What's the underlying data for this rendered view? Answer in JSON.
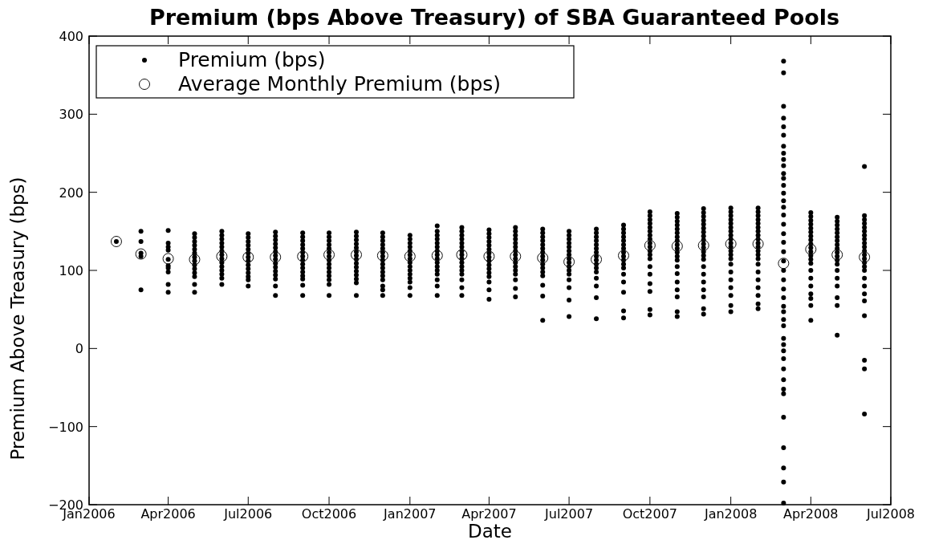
{
  "chart_data": {
    "type": "scatter",
    "title": "Premium (bps Above Treasury) of SBA Guaranteed Pools",
    "xlabel": "Date",
    "ylabel": "Premium Above Treasury (bps)",
    "xlim": [
      "2006-01",
      "2008-07"
    ],
    "xticks": [
      {
        "value": "2006-01",
        "label": "Jan2006"
      },
      {
        "value": "2006-04",
        "label": "Apr2006"
      },
      {
        "value": "2006-07",
        "label": "Jul2006"
      },
      {
        "value": "2006-10",
        "label": "Oct2006"
      },
      {
        "value": "2007-01",
        "label": "Jan2007"
      },
      {
        "value": "2007-04",
        "label": "Apr2007"
      },
      {
        "value": "2007-07",
        "label": "Jul2007"
      },
      {
        "value": "2007-10",
        "label": "Oct2007"
      },
      {
        "value": "2008-01",
        "label": "Jan2008"
      },
      {
        "value": "2008-04",
        "label": "Apr2008"
      },
      {
        "value": "2008-07",
        "label": "Jul2008"
      }
    ],
    "ylim": [
      -200,
      400
    ],
    "yticks": [
      {
        "value": -200,
        "label": "−200"
      },
      {
        "value": -100,
        "label": "−100"
      },
      0,
      100,
      200,
      300,
      400
    ],
    "grid": false,
    "legend": "top left",
    "series": [
      {
        "name": "Premium (bps)",
        "color": "#000000",
        "marker": "circle",
        "x": [
          "2006-02",
          "2006-03",
          "2006-03",
          "2006-03",
          "2006-03",
          "2006-03",
          "2006-04",
          "2006-04",
          "2006-04",
          "2006-04",
          "2006-04",
          "2006-04",
          "2006-04",
          "2006-04",
          "2006-04",
          "2006-04",
          "2006-05",
          "2006-05",
          "2006-05",
          "2006-05",
          "2006-05",
          "2006-05",
          "2006-05",
          "2006-05",
          "2006-05",
          "2006-05",
          "2006-05",
          "2006-05",
          "2006-05",
          "2006-05",
          "2006-06",
          "2006-06",
          "2006-06",
          "2006-06",
          "2006-06",
          "2006-06",
          "2006-06",
          "2006-06",
          "2006-06",
          "2006-06",
          "2006-06",
          "2006-06",
          "2006-06",
          "2006-06",
          "2006-07",
          "2006-07",
          "2006-07",
          "2006-07",
          "2006-07",
          "2006-07",
          "2006-07",
          "2006-07",
          "2006-07",
          "2006-07",
          "2006-07",
          "2006-07",
          "2006-07",
          "2006-07",
          "2006-08",
          "2006-08",
          "2006-08",
          "2006-08",
          "2006-08",
          "2006-08",
          "2006-08",
          "2006-08",
          "2006-08",
          "2006-08",
          "2006-08",
          "2006-08",
          "2006-08",
          "2006-08",
          "2006-08",
          "2006-09",
          "2006-09",
          "2006-09",
          "2006-09",
          "2006-09",
          "2006-09",
          "2006-09",
          "2006-09",
          "2006-09",
          "2006-09",
          "2006-09",
          "2006-09",
          "2006-09",
          "2006-09",
          "2006-09",
          "2006-10",
          "2006-10",
          "2006-10",
          "2006-10",
          "2006-10",
          "2006-10",
          "2006-10",
          "2006-10",
          "2006-10",
          "2006-10",
          "2006-10",
          "2006-10",
          "2006-10",
          "2006-10",
          "2006-10",
          "2006-11",
          "2006-11",
          "2006-11",
          "2006-11",
          "2006-11",
          "2006-11",
          "2006-11",
          "2006-11",
          "2006-11",
          "2006-11",
          "2006-11",
          "2006-11",
          "2006-11",
          "2006-11",
          "2006-11",
          "2006-12",
          "2006-12",
          "2006-12",
          "2006-12",
          "2006-12",
          "2006-12",
          "2006-12",
          "2006-12",
          "2006-12",
          "2006-12",
          "2006-12",
          "2006-12",
          "2006-12",
          "2006-12",
          "2006-12",
          "2006-12",
          "2007-01",
          "2007-01",
          "2007-01",
          "2007-01",
          "2007-01",
          "2007-01",
          "2007-01",
          "2007-01",
          "2007-01",
          "2007-01",
          "2007-01",
          "2007-01",
          "2007-01",
          "2007-01",
          "2007-01",
          "2007-02",
          "2007-02",
          "2007-02",
          "2007-02",
          "2007-02",
          "2007-02",
          "2007-02",
          "2007-02",
          "2007-02",
          "2007-02",
          "2007-02",
          "2007-02",
          "2007-02",
          "2007-02",
          "2007-02",
          "2007-02",
          "2007-03",
          "2007-03",
          "2007-03",
          "2007-03",
          "2007-03",
          "2007-03",
          "2007-03",
          "2007-03",
          "2007-03",
          "2007-03",
          "2007-03",
          "2007-03",
          "2007-03",
          "2007-03",
          "2007-03",
          "2007-03",
          "2007-04",
          "2007-04",
          "2007-04",
          "2007-04",
          "2007-04",
          "2007-04",
          "2007-04",
          "2007-04",
          "2007-04",
          "2007-04",
          "2007-04",
          "2007-04",
          "2007-04",
          "2007-04",
          "2007-04",
          "2007-04",
          "2007-05",
          "2007-05",
          "2007-05",
          "2007-05",
          "2007-05",
          "2007-05",
          "2007-05",
          "2007-05",
          "2007-05",
          "2007-05",
          "2007-05",
          "2007-05",
          "2007-05",
          "2007-05",
          "2007-05",
          "2007-05",
          "2007-06",
          "2007-06",
          "2007-06",
          "2007-06",
          "2007-06",
          "2007-06",
          "2007-06",
          "2007-06",
          "2007-06",
          "2007-06",
          "2007-06",
          "2007-06",
          "2007-06",
          "2007-06",
          "2007-06",
          "2007-06",
          "2007-07",
          "2007-07",
          "2007-07",
          "2007-07",
          "2007-07",
          "2007-07",
          "2007-07",
          "2007-07",
          "2007-07",
          "2007-07",
          "2007-07",
          "2007-07",
          "2007-07",
          "2007-07",
          "2007-07",
          "2007-07",
          "2007-08",
          "2007-08",
          "2007-08",
          "2007-08",
          "2007-08",
          "2007-08",
          "2007-08",
          "2007-08",
          "2007-08",
          "2007-08",
          "2007-08",
          "2007-08",
          "2007-08",
          "2007-08",
          "2007-08",
          "2007-08",
          "2007-09",
          "2007-09",
          "2007-09",
          "2007-09",
          "2007-09",
          "2007-09",
          "2007-09",
          "2007-09",
          "2007-09",
          "2007-09",
          "2007-09",
          "2007-09",
          "2007-09",
          "2007-09",
          "2007-09",
          "2007-09",
          "2007-09",
          "2007-10",
          "2007-10",
          "2007-10",
          "2007-10",
          "2007-10",
          "2007-10",
          "2007-10",
          "2007-10",
          "2007-10",
          "2007-10",
          "2007-10",
          "2007-10",
          "2007-10",
          "2007-10",
          "2007-10",
          "2007-10",
          "2007-10",
          "2007-10",
          "2007-10",
          "2007-11",
          "2007-11",
          "2007-11",
          "2007-11",
          "2007-11",
          "2007-11",
          "2007-11",
          "2007-11",
          "2007-11",
          "2007-11",
          "2007-11",
          "2007-11",
          "2007-11",
          "2007-11",
          "2007-11",
          "2007-11",
          "2007-11",
          "2007-11",
          "2007-11",
          "2007-11",
          "2007-12",
          "2007-12",
          "2007-12",
          "2007-12",
          "2007-12",
          "2007-12",
          "2007-12",
          "2007-12",
          "2007-12",
          "2007-12",
          "2007-12",
          "2007-12",
          "2007-12",
          "2007-12",
          "2007-12",
          "2007-12",
          "2007-12",
          "2007-12",
          "2007-12",
          "2007-12",
          "2007-12",
          "2008-01",
          "2008-01",
          "2008-01",
          "2008-01",
          "2008-01",
          "2008-01",
          "2008-01",
          "2008-01",
          "2008-01",
          "2008-01",
          "2008-01",
          "2008-01",
          "2008-01",
          "2008-01",
          "2008-01",
          "2008-01",
          "2008-01",
          "2008-01",
          "2008-01",
          "2008-01",
          "2008-01",
          "2008-02",
          "2008-02",
          "2008-02",
          "2008-02",
          "2008-02",
          "2008-02",
          "2008-02",
          "2008-02",
          "2008-02",
          "2008-02",
          "2008-02",
          "2008-02",
          "2008-02",
          "2008-02",
          "2008-02",
          "2008-02",
          "2008-02",
          "2008-02",
          "2008-02",
          "2008-02",
          "2008-02",
          "2008-03",
          "2008-03",
          "2008-03",
          "2008-03",
          "2008-03",
          "2008-03",
          "2008-03",
          "2008-03",
          "2008-03",
          "2008-03",
          "2008-03",
          "2008-03",
          "2008-03",
          "2008-03",
          "2008-03",
          "2008-03",
          "2008-03",
          "2008-03",
          "2008-03",
          "2008-03",
          "2008-03",
          "2008-03",
          "2008-03",
          "2008-03",
          "2008-03",
          "2008-03",
          "2008-03",
          "2008-03",
          "2008-03",
          "2008-03",
          "2008-03",
          "2008-03",
          "2008-03",
          "2008-03",
          "2008-03",
          "2008-03",
          "2008-03",
          "2008-03",
          "2008-03",
          "2008-03",
          "2008-03",
          "2008-03",
          "2008-03",
          "2008-04",
          "2008-04",
          "2008-04",
          "2008-04",
          "2008-04",
          "2008-04",
          "2008-04",
          "2008-04",
          "2008-04",
          "2008-04",
          "2008-04",
          "2008-04",
          "2008-04",
          "2008-04",
          "2008-04",
          "2008-04",
          "2008-04",
          "2008-04",
          "2008-04",
          "2008-04",
          "2008-04",
          "2008-05",
          "2008-05",
          "2008-05",
          "2008-05",
          "2008-05",
          "2008-05",
          "2008-05",
          "2008-05",
          "2008-05",
          "2008-05",
          "2008-05",
          "2008-05",
          "2008-05",
          "2008-05",
          "2008-05",
          "2008-05",
          "2008-05",
          "2008-05",
          "2008-05",
          "2008-06",
          "2008-06",
          "2008-06",
          "2008-06",
          "2008-06",
          "2008-06",
          "2008-06",
          "2008-06",
          "2008-06",
          "2008-06",
          "2008-06",
          "2008-06",
          "2008-06",
          "2008-06",
          "2008-06",
          "2008-06",
          "2008-06",
          "2008-06",
          "2008-06",
          "2008-06",
          "2008-06",
          "2008-06",
          "2008-06",
          "2008-06"
        ],
        "values": [
          137,
          150,
          137,
          122,
          118,
          75,
          151,
          135,
          130,
          126,
          114,
          106,
          103,
          98,
          82,
          72,
          147,
          142,
          137,
          132,
          127,
          122,
          117,
          112,
          107,
          102,
          97,
          92,
          82,
          72,
          150,
          145,
          140,
          135,
          130,
          125,
          120,
          115,
          110,
          105,
          100,
          95,
          90,
          82,
          147,
          142,
          137,
          132,
          127,
          122,
          117,
          112,
          107,
          102,
          97,
          92,
          88,
          80,
          149,
          144,
          139,
          134,
          129,
          124,
          119,
          114,
          109,
          104,
          99,
          94,
          89,
          80,
          68,
          148,
          143,
          138,
          133,
          128,
          123,
          118,
          113,
          108,
          103,
          98,
          93,
          89,
          81,
          68,
          148,
          143,
          138,
          133,
          128,
          123,
          118,
          113,
          108,
          103,
          98,
          93,
          88,
          82,
          68,
          149,
          144,
          139,
          134,
          129,
          124,
          119,
          114,
          109,
          104,
          99,
          94,
          89,
          84,
          68,
          148,
          143,
          138,
          133,
          128,
          123,
          118,
          113,
          108,
          103,
          98,
          93,
          88,
          80,
          75,
          68,
          145,
          140,
          135,
          130,
          125,
          120,
          115,
          110,
          105,
          100,
          95,
          90,
          85,
          78,
          68,
          157,
          150,
          145,
          140,
          135,
          130,
          125,
          120,
          115,
          110,
          105,
          100,
          95,
          88,
          80,
          68,
          155,
          150,
          145,
          140,
          135,
          130,
          125,
          120,
          115,
          110,
          105,
          100,
          95,
          88,
          78,
          68,
          152,
          147,
          142,
          137,
          132,
          127,
          122,
          117,
          112,
          107,
          102,
          97,
          92,
          85,
          75,
          63,
          155,
          150,
          145,
          140,
          135,
          130,
          125,
          120,
          115,
          110,
          105,
          100,
          95,
          88,
          77,
          66,
          153,
          148,
          143,
          138,
          133,
          128,
          123,
          118,
          113,
          108,
          103,
          98,
          93,
          81,
          67,
          36,
          150,
          145,
          140,
          135,
          130,
          125,
          120,
          115,
          110,
          105,
          100,
          95,
          88,
          78,
          62,
          41,
          153,
          148,
          143,
          138,
          133,
          128,
          123,
          118,
          113,
          108,
          103,
          98,
          90,
          80,
          65,
          38,
          158,
          153,
          148,
          143,
          138,
          133,
          128,
          123,
          118,
          113,
          108,
          103,
          95,
          85,
          72,
          48,
          39,
          175,
          170,
          165,
          160,
          155,
          150,
          145,
          140,
          135,
          130,
          125,
          120,
          115,
          105,
          95,
          83,
          73,
          50,
          43,
          173,
          168,
          163,
          158,
          153,
          148,
          143,
          138,
          133,
          128,
          123,
          118,
          113,
          105,
          96,
          85,
          75,
          66,
          47,
          41,
          179,
          174,
          169,
          164,
          159,
          154,
          149,
          144,
          139,
          134,
          129,
          124,
          119,
          114,
          105,
          95,
          85,
          75,
          66,
          51,
          44,
          180,
          175,
          170,
          165,
          160,
          155,
          150,
          145,
          140,
          135,
          130,
          125,
          120,
          115,
          108,
          98,
          88,
          78,
          68,
          55,
          47,
          180,
          175,
          170,
          165,
          160,
          155,
          150,
          145,
          140,
          135,
          130,
          125,
          120,
          115,
          108,
          98,
          88,
          78,
          68,
          57,
          51,
          368,
          353,
          310,
          295,
          284,
          273,
          259,
          250,
          242,
          234,
          224,
          218,
          209,
          199,
          189,
          181,
          171,
          159,
          147,
          136,
          124,
          112,
          100,
          88,
          76,
          65,
          54,
          47,
          37,
          29,
          13,
          5,
          -3,
          -13,
          -26,
          -40,
          -52,
          -58,
          -88,
          -127,
          -153,
          -171,
          -198,
          174,
          169,
          164,
          159,
          154,
          149,
          144,
          139,
          134,
          129,
          124,
          119,
          114,
          109,
          100,
          90,
          80,
          70,
          64,
          55,
          36,
          168,
          163,
          158,
          153,
          148,
          143,
          138,
          133,
          128,
          123,
          118,
          113,
          108,
          100,
          90,
          80,
          65,
          55,
          17,
          233,
          170,
          165,
          160,
          155,
          150,
          145,
          140,
          135,
          130,
          125,
          120,
          115,
          110,
          105,
          100,
          90,
          80,
          70,
          61,
          42,
          -15,
          -26,
          -84
        ]
      },
      {
        "name": "Average Monthly Premium (bps)",
        "color": "#111111",
        "marker": "circle",
        "x": [
          "2006-02",
          "2006-03",
          "2006-04",
          "2006-05",
          "2006-06",
          "2006-07",
          "2006-08",
          "2006-09",
          "2006-10",
          "2006-11",
          "2006-12",
          "2007-01",
          "2007-02",
          "2007-03",
          "2007-04",
          "2007-05",
          "2007-06",
          "2007-07",
          "2007-08",
          "2007-09",
          "2007-10",
          "2007-11",
          "2007-12",
          "2008-01",
          "2008-02",
          "2008-03",
          "2008-04",
          "2008-05",
          "2008-06"
        ],
        "values": [
          137,
          121,
          115,
          114,
          118,
          117,
          117,
          118,
          120,
          120,
          119,
          118,
          119,
          120,
          118,
          118,
          116,
          111,
          114,
          119,
          132,
          131,
          132,
          134,
          134,
          109,
          127,
          120,
          117
        ]
      }
    ]
  }
}
